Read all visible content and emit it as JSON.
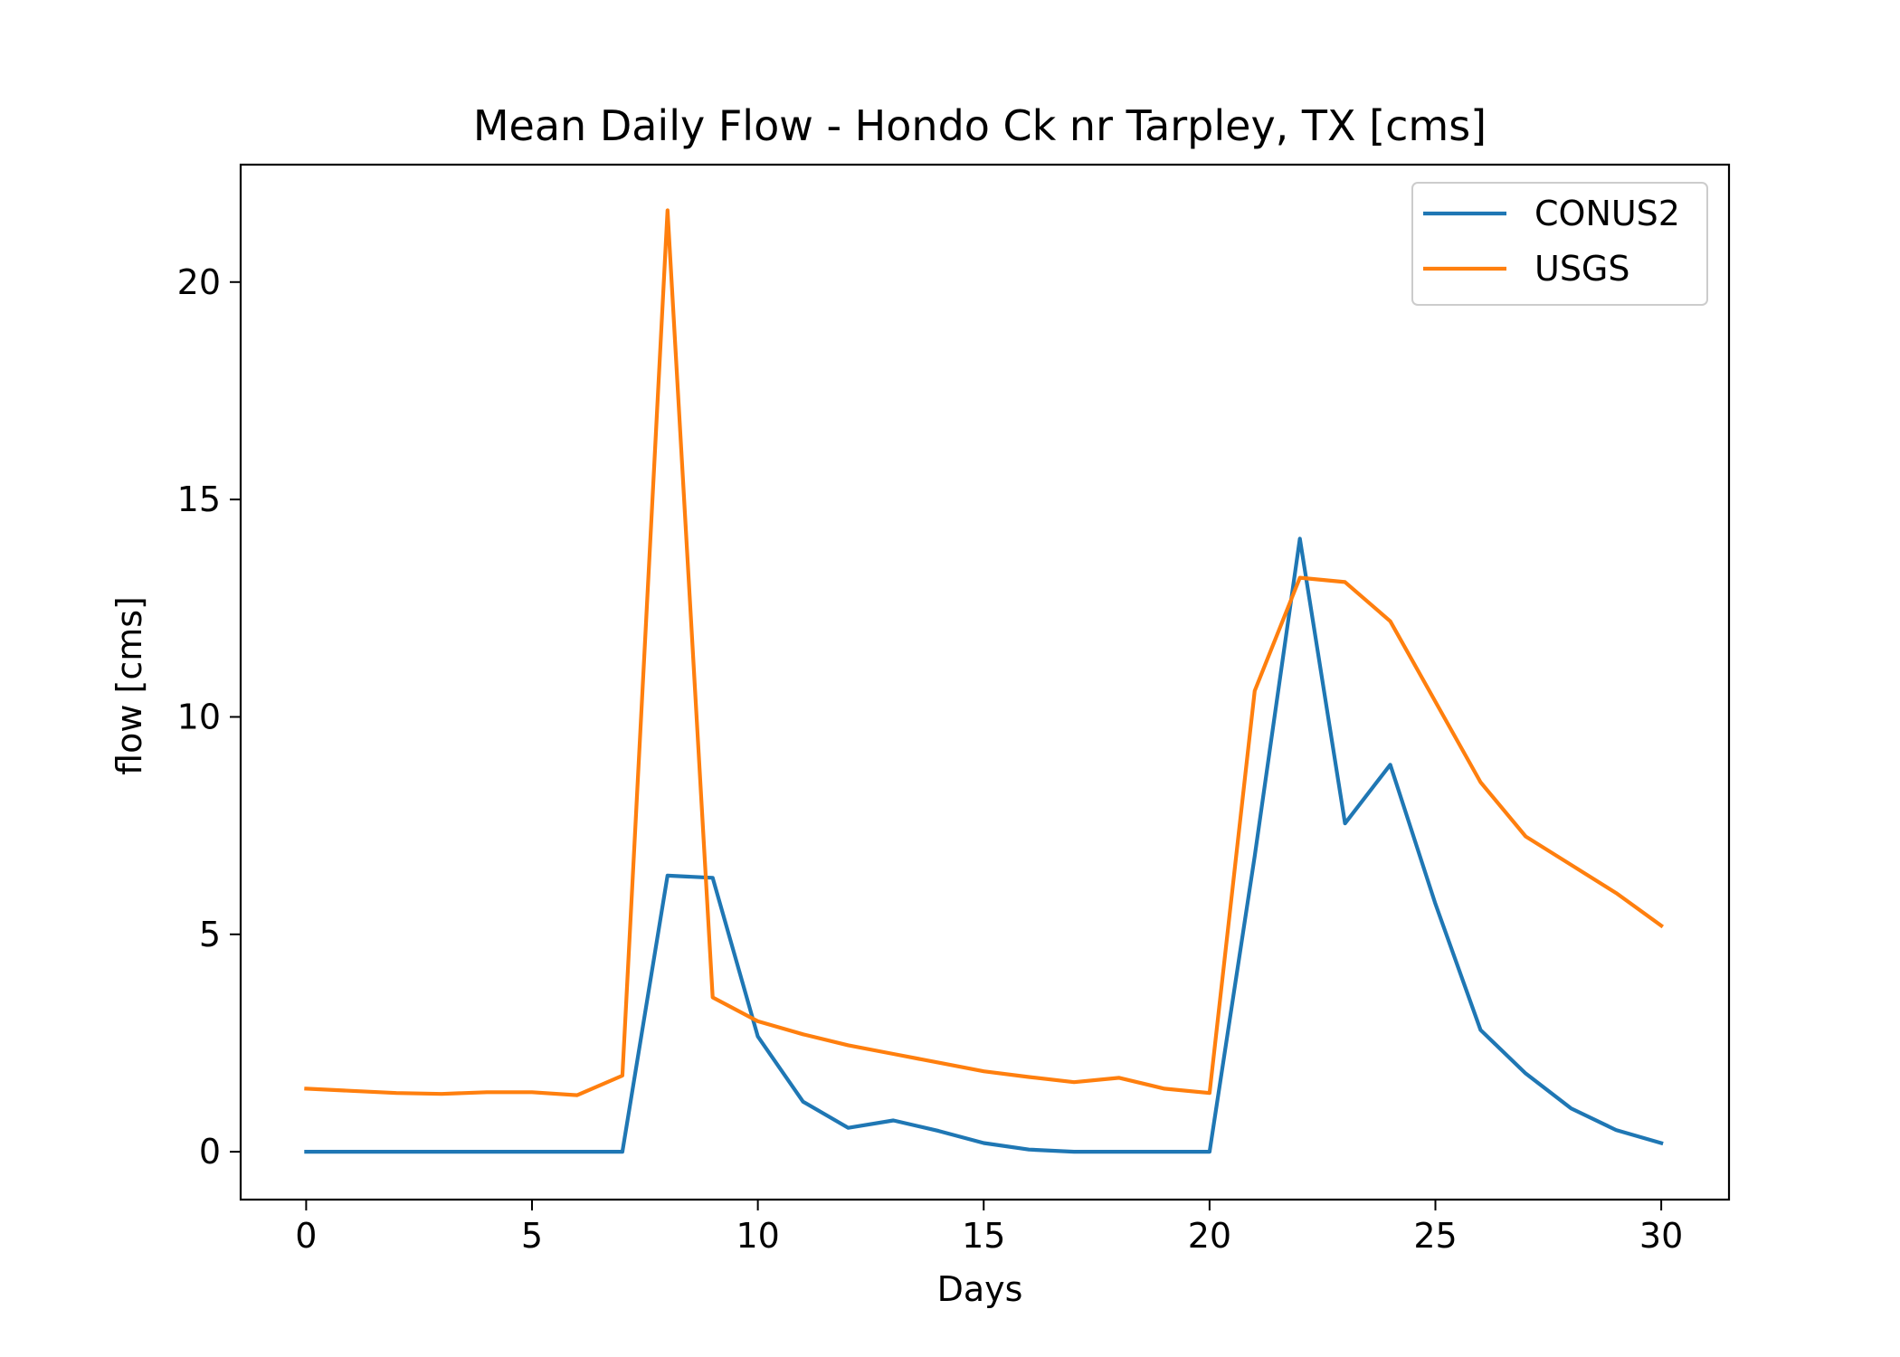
{
  "chart_data": {
    "type": "line",
    "title": "Mean Daily Flow - Hondo Ck nr Tarpley, TX [cms]",
    "xlabel": "Days",
    "ylabel": "flow [cms]",
    "xlim": [
      -1.45,
      31.5
    ],
    "ylim": [
      -1.1,
      22.7
    ],
    "xticks": [
      0,
      5,
      10,
      15,
      20,
      25,
      30
    ],
    "yticks": [
      0,
      5,
      10,
      15,
      20
    ],
    "grid": false,
    "legend_position": "top-right",
    "x": [
      0,
      1,
      2,
      3,
      4,
      5,
      6,
      7,
      8,
      9,
      10,
      11,
      12,
      13,
      14,
      15,
      16,
      17,
      18,
      19,
      20,
      21,
      22,
      23,
      24,
      25,
      26,
      27,
      28,
      29,
      30
    ],
    "series": [
      {
        "name": "CONUS2",
        "color": "#1f77b4",
        "values": [
          0,
          0,
          0,
          0,
          0,
          0,
          0,
          0,
          6.35,
          6.3,
          2.65,
          1.15,
          0.55,
          0.72,
          0.48,
          0.2,
          0.05,
          0.0,
          0.0,
          0.0,
          0.0,
          6.8,
          14.1,
          7.55,
          8.9,
          5.7,
          2.8,
          1.8,
          1.0,
          0.5,
          0.2
        ]
      },
      {
        "name": "USGS",
        "color": "#ff7f0e",
        "values": [
          1.45,
          1.4,
          1.35,
          1.33,
          1.37,
          1.37,
          1.3,
          1.75,
          21.65,
          3.55,
          3.0,
          2.7,
          2.45,
          2.25,
          2.05,
          1.85,
          1.72,
          1.6,
          1.7,
          1.45,
          1.35,
          10.6,
          13.2,
          13.1,
          12.2,
          10.35,
          8.5,
          7.25,
          6.6,
          5.95,
          5.2
        ]
      }
    ]
  }
}
